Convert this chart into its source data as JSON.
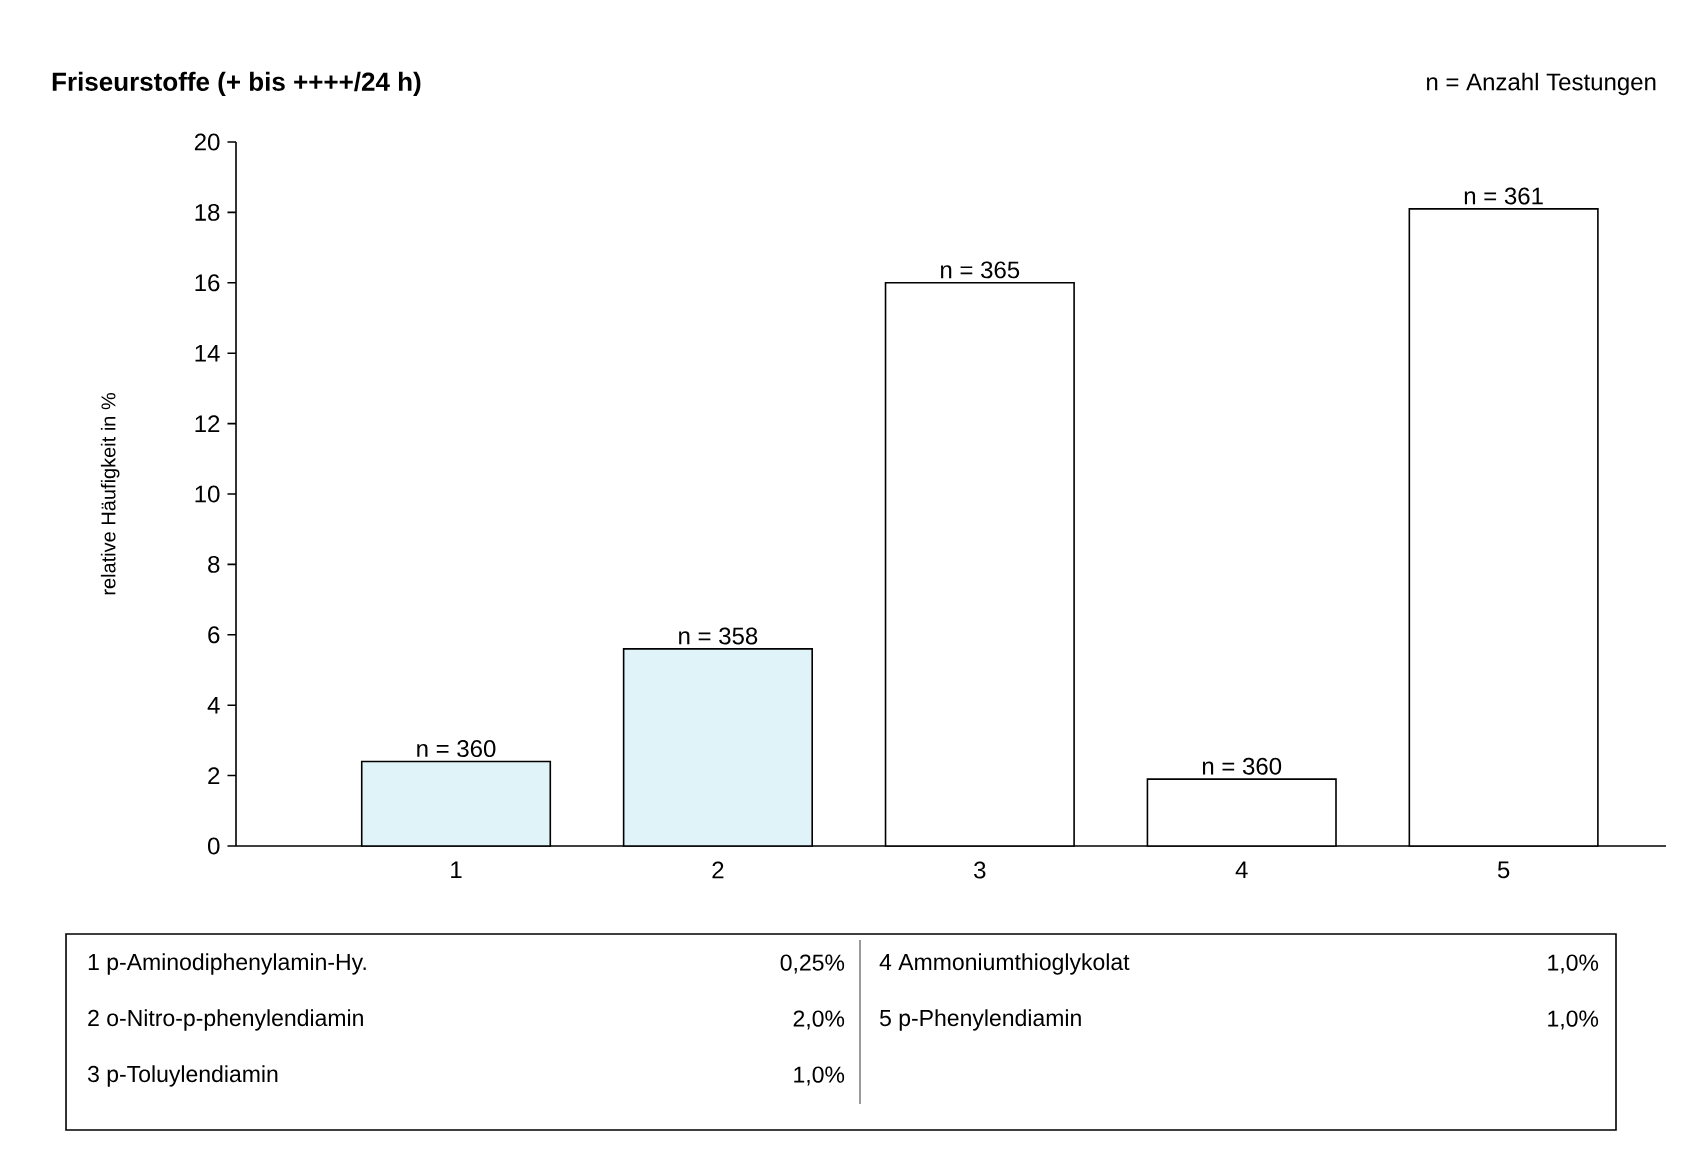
{
  "chart_data": {
    "type": "bar",
    "title": "Friseurstoffe (+ bis ++++/24 h)",
    "ylabel": "relative Häufigkeit in %",
    "categories": [
      "1",
      "2",
      "3",
      "4",
      "5"
    ],
    "values": [
      2.4,
      5.6,
      16.0,
      1.9,
      18.1
    ],
    "colors": [
      "#dff3f8",
      "#dff3f8",
      "#ffffff",
      "#ffffff",
      "#ffffff"
    ],
    "ylim": [
      0,
      20
    ],
    "yticks": [
      0,
      2,
      4,
      6,
      8,
      10,
      12,
      14,
      16,
      18,
      20
    ],
    "grid": false,
    "annotations": [
      {
        "text": "n = 360",
        "x": "1",
        "y": 2.4
      },
      {
        "text": "n = 358",
        "x": "2",
        "y": 5.6
      },
      {
        "text": "n = 365",
        "x": "3",
        "y": 16.0
      },
      {
        "text": "n = 360",
        "x": "4",
        "y": 1.9
      },
      {
        "text": "n = 361",
        "x": "5",
        "y": 18.1
      },
      "n = Anzahl Testungen",
      "1 p-Aminodiphenylamin-Hy.",
      "0,25%",
      "2 o-Nitro-p-phenylendiamin",
      "2,0%",
      "3 p-Toluylendiamin",
      "1,0%",
      "4 Ammoniumthioglykolat",
      "1,0%",
      "5 p-Phenylendiamin",
      "1,0%"
    ]
  }
}
